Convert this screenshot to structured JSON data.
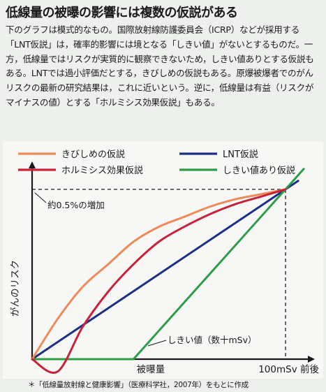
{
  "headline": "低線量の被曝の影響には複数の仮説がある",
  "body_text": "下のグラフは模式的なもの。国際放射線防護委員会（ICRP）などが採用する「LNT仮説」は，確率的影響には境となる「しきい値」がないとするものだ。一方，低線量ではリスクが実質的に観察できないため，しきい値ありとする仮説もある。LNTでは過小評価だとする，きびしめの仮説もある。原爆被爆者でのがんリスクの最新の研究結果は，これに近いという。逆に，低線量は有益（リスクがマイナスの値）とする「ホルミシス効果仮説」もある。",
  "chart_data": {
    "type": "line",
    "title": "",
    "xlabel": "被曝量",
    "ylabel": "がんのリスク",
    "x_end_label": "100mSv 前後",
    "x": [
      0,
      10,
      20,
      30,
      40,
      50,
      60,
      70,
      80,
      90,
      100
    ],
    "series": [
      {
        "name": "きびしめの仮説",
        "color": "#ee8a5a",
        "values": [
          0,
          0.16,
          0.29,
          0.38,
          0.47,
          0.53,
          0.57,
          0.61,
          0.64,
          0.66,
          0.68
        ]
      },
      {
        "name": "LNT仮説",
        "color": "#1c2f86",
        "values": [
          0,
          0.068,
          0.136,
          0.204,
          0.272,
          0.34,
          0.408,
          0.476,
          0.544,
          0.612,
          0.68
        ]
      },
      {
        "name": "ホルミシス効果仮説",
        "color": "#c8223b",
        "values": [
          0,
          -0.05,
          0.13,
          0.27,
          0.38,
          0.47,
          0.53,
          0.58,
          0.62,
          0.65,
          0.68
        ]
      },
      {
        "name": "しきい値あり仮説",
        "color": "#2f9c47",
        "values": [
          0,
          0,
          0,
          0,
          0,
          0.03,
          0.16,
          0.29,
          0.42,
          0.55,
          0.68
        ]
      }
    ],
    "annotations": {
      "level_label": "約0.5%の増加",
      "threshold_label": "しきい値（数十mSv）"
    },
    "legend_position": "top",
    "grid": false
  },
  "footnote": "＊「低線量放射線と健康影響」（医療科学社，2007年）をもとに作成"
}
